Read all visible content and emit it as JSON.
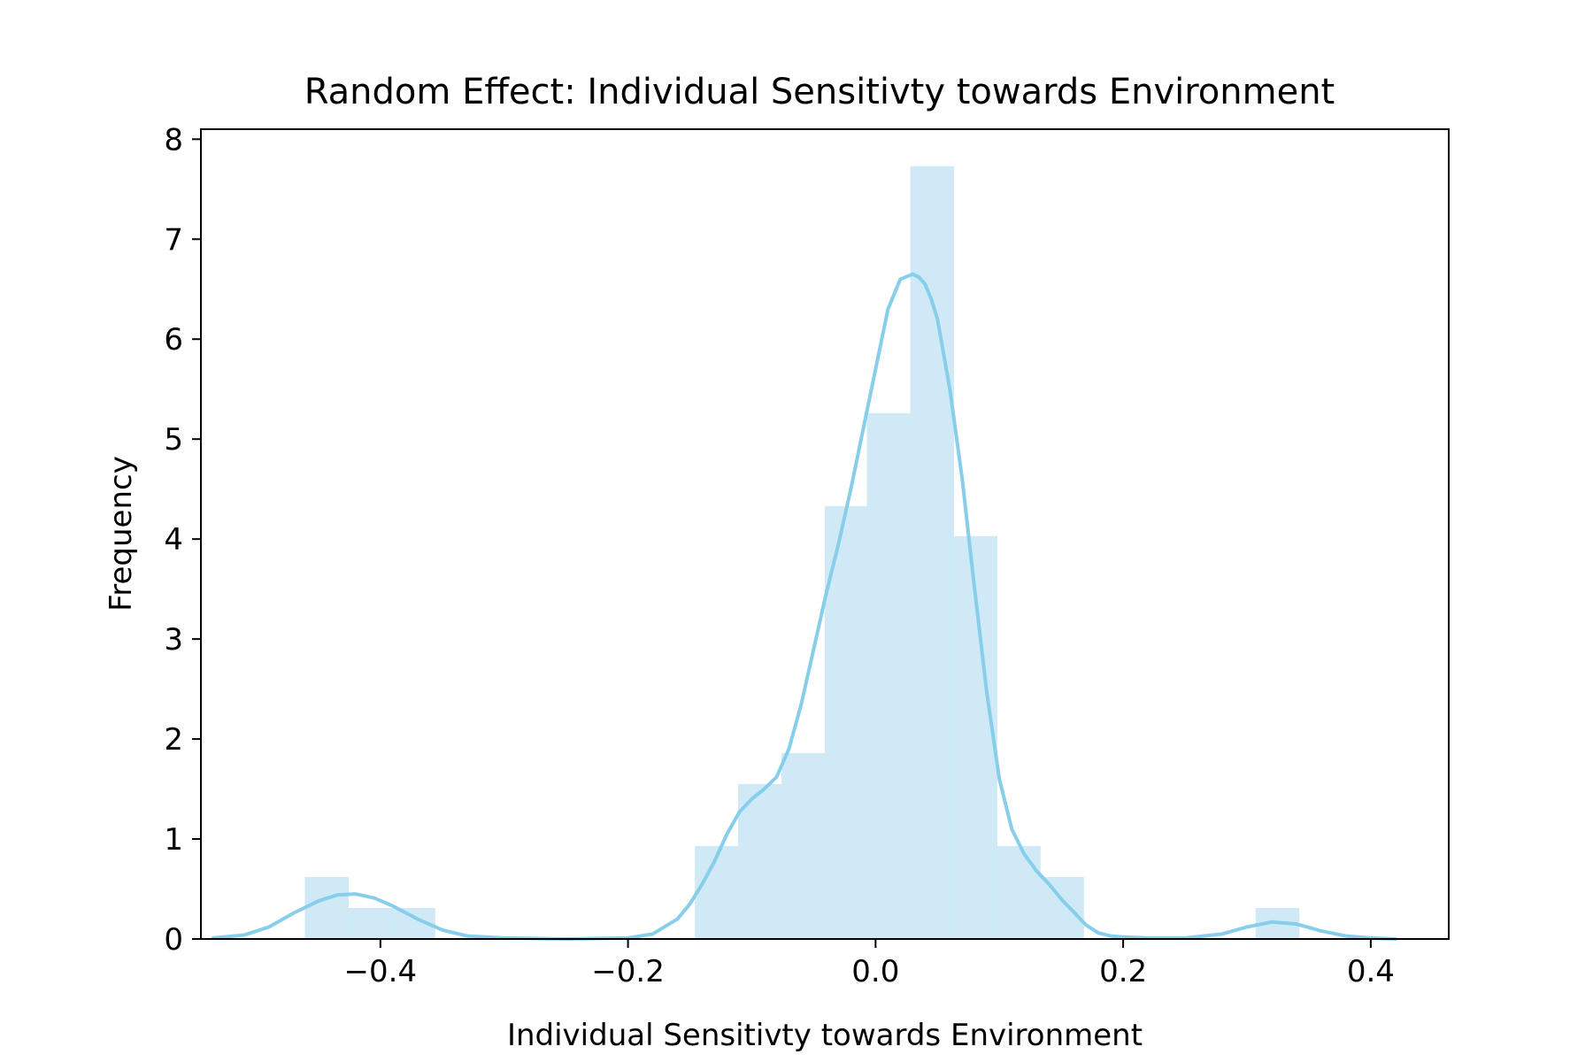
{
  "chart_data": {
    "type": "bar",
    "title": "Random Effect: Individual Sensitivty towards Environment",
    "xlabel": "Individual Sensitivty towards Environment",
    "ylabel": "Frequency",
    "xlim": [
      -0.545,
      0.463
    ],
    "ylim": [
      0,
      8.1
    ],
    "xticks": [
      {
        "value": -0.4,
        "label": "−0.4"
      },
      {
        "value": -0.2,
        "label": "−0.2"
      },
      {
        "value": 0.0,
        "label": "0.0"
      },
      {
        "value": 0.2,
        "label": "0.2"
      },
      {
        "value": 0.4,
        "label": "0.4"
      }
    ],
    "yticks": [
      {
        "value": 0,
        "label": "0"
      },
      {
        "value": 1,
        "label": "1"
      },
      {
        "value": 2,
        "label": "2"
      },
      {
        "value": 3,
        "label": "3"
      },
      {
        "value": 4,
        "label": "4"
      },
      {
        "value": 5,
        "label": "5"
      },
      {
        "value": 6,
        "label": "6"
      },
      {
        "value": 7,
        "label": "7"
      },
      {
        "value": 8,
        "label": "8"
      }
    ],
    "bin_width": 0.0349,
    "bars": [
      {
        "x0": -0.461,
        "height": 0.62
      },
      {
        "x0": -0.426,
        "height": 0.31
      },
      {
        "x0": -0.391,
        "height": 0.31
      },
      {
        "x0": -0.146,
        "height": 0.93
      },
      {
        "x0": -0.111,
        "height": 1.55
      },
      {
        "x0": -0.076,
        "height": 1.86
      },
      {
        "x0": -0.041,
        "height": 4.33
      },
      {
        "x0": -0.007,
        "height": 5.26
      },
      {
        "x0": 0.028,
        "height": 7.73
      },
      {
        "x0": 0.063,
        "height": 4.03
      },
      {
        "x0": 0.098,
        "height": 0.93
      },
      {
        "x0": 0.133,
        "height": 0.62
      },
      {
        "x0": 0.307,
        "height": 0.31
      }
    ],
    "kde": {
      "x": [
        -0.535,
        -0.51,
        -0.49,
        -0.47,
        -0.45,
        -0.435,
        -0.42,
        -0.405,
        -0.39,
        -0.37,
        -0.35,
        -0.33,
        -0.3,
        -0.25,
        -0.2,
        -0.18,
        -0.16,
        -0.15,
        -0.14,
        -0.13,
        -0.12,
        -0.11,
        -0.1,
        -0.09,
        -0.08,
        -0.07,
        -0.06,
        -0.05,
        -0.04,
        -0.03,
        -0.02,
        -0.01,
        0.0,
        0.01,
        0.02,
        0.03,
        0.035,
        0.04,
        0.045,
        0.05,
        0.06,
        0.07,
        0.08,
        0.09,
        0.1,
        0.11,
        0.12,
        0.13,
        0.14,
        0.15,
        0.16,
        0.17,
        0.18,
        0.19,
        0.2,
        0.22,
        0.25,
        0.28,
        0.3,
        0.32,
        0.34,
        0.36,
        0.38,
        0.4,
        0.42
      ],
      "y": [
        0.01,
        0.04,
        0.12,
        0.26,
        0.38,
        0.44,
        0.45,
        0.41,
        0.33,
        0.2,
        0.09,
        0.03,
        0.01,
        0.0,
        0.01,
        0.05,
        0.2,
        0.35,
        0.55,
        0.78,
        1.05,
        1.27,
        1.4,
        1.5,
        1.62,
        1.9,
        2.35,
        2.9,
        3.45,
        3.95,
        4.5,
        5.1,
        5.7,
        6.3,
        6.6,
        6.65,
        6.62,
        6.55,
        6.4,
        6.2,
        5.5,
        4.6,
        3.5,
        2.45,
        1.6,
        1.1,
        0.85,
        0.68,
        0.55,
        0.4,
        0.27,
        0.14,
        0.06,
        0.03,
        0.02,
        0.01,
        0.01,
        0.05,
        0.12,
        0.17,
        0.15,
        0.08,
        0.03,
        0.01,
        0.0
      ]
    },
    "colors": {
      "bar_fill": "#cfe9f6",
      "line": "#87ceeb"
    },
    "grid": false,
    "legend": "none"
  }
}
